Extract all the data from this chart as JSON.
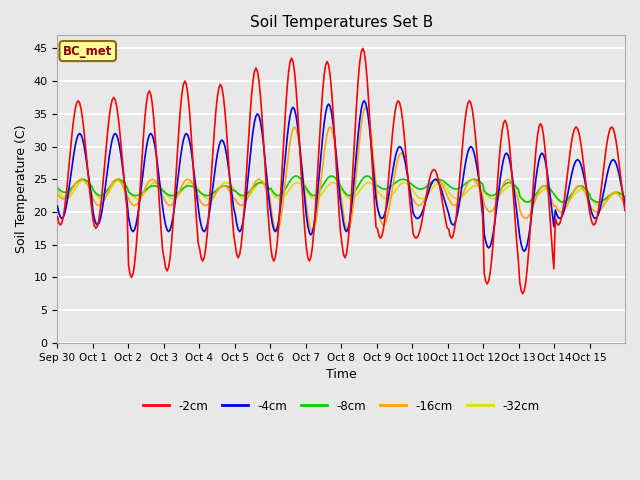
{
  "title": "Soil Temperatures Set B",
  "xlabel": "Time",
  "ylabel": "Soil Temperature (C)",
  "annotation": "BC_met",
  "ylim": [
    0,
    47
  ],
  "yticks": [
    0,
    5,
    10,
    15,
    20,
    25,
    30,
    35,
    40,
    45
  ],
  "series_colors": {
    "-2cm": "#ff0000",
    "-4cm": "#0000ee",
    "-8cm": "#00cc00",
    "-16cm": "#ffa500",
    "-32cm": "#dddd00"
  },
  "legend_labels": [
    "-2cm",
    "-4cm",
    "-8cm",
    "-16cm",
    "-32cm"
  ],
  "xtick_labels": [
    "Sep 30",
    "Oct 1",
    "Oct 2",
    "Oct 3",
    "Oct 4",
    "Oct 5",
    "Oct 6",
    "Oct 7",
    "Oct 8",
    "Oct 9",
    "Oct 10",
    "Oct 11",
    "Oct 12",
    "Oct 13",
    "Oct 14",
    "Oct 15"
  ],
  "bg_color": "#e8e8e8",
  "plot_bg_color": "#e8e8e8",
  "grid_color": "#ffffff"
}
